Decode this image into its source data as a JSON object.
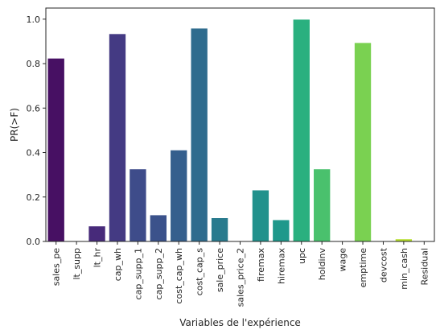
{
  "chart_data": {
    "type": "bar",
    "title": "",
    "xlabel": "Variables de l'expérience",
    "ylabel": "PR(>F)",
    "ylim": [
      0,
      1.05
    ],
    "yticks": [
      0.0,
      0.2,
      0.4,
      0.6,
      0.8,
      1.0
    ],
    "ytick_labels": [
      "0.0",
      "0.2",
      "0.4",
      "0.6",
      "0.8",
      "1.0"
    ],
    "grid": false,
    "legend": "none",
    "palette": "viridis",
    "categories": [
      "sales_pe",
      "lt_supp",
      "lt_hr",
      "cap_wh",
      "cap_supp_1",
      "cap_supp_2",
      "cost_cap_wh",
      "cost_cap_s",
      "sale_price",
      "sales_price_2",
      "firemax",
      "hiremax",
      "upc",
      "holdinv",
      "wage",
      "emptime",
      "devcost",
      "min_cash",
      "Residual"
    ],
    "values": [
      0.823,
      0.0,
      0.068,
      0.933,
      0.325,
      0.118,
      0.41,
      0.958,
      0.105,
      0.0,
      0.23,
      0.096,
      0.998,
      0.325,
      0.0,
      0.893,
      0.0,
      0.01,
      0.0
    ],
    "colors": [
      "#471063",
      "#48186a",
      "#472a7a",
      "#443a83",
      "#3e4c8a",
      "#3b528b",
      "#355f8d",
      "#2f6c8e",
      "#297b8e",
      "#23898e",
      "#21918c",
      "#1f988b",
      "#2ab07f",
      "#4ac16d",
      "#5ec962",
      "#7ad151",
      "#9bd93c",
      "#b5de2b",
      "#dde318"
    ]
  }
}
